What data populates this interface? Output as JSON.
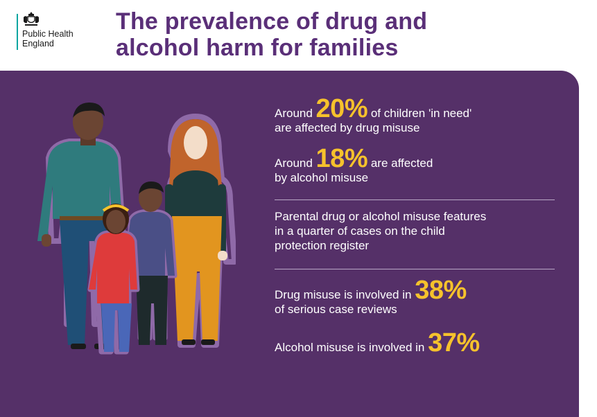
{
  "header": {
    "org_line1": "Public Health",
    "org_line2": "England",
    "title_line1": "The prevalence of drug and",
    "title_line2": "alcohol harm for families"
  },
  "stats": [
    {
      "pre": "Around ",
      "value": "20%",
      "post": " of children 'in need'",
      "line2": "are affected by drug misuse"
    },
    {
      "pre": "Around ",
      "value": "18%",
      "post": " are affected",
      "line2": "by alcohol misuse"
    },
    {
      "lines": [
        "Parental drug or alcohol misuse features",
        "in a quarter of cases on the child",
        "protection register"
      ]
    },
    {
      "pre": "Drug misuse is involved in ",
      "value": "38%",
      "line2": "of serious case reviews"
    },
    {
      "pre": "Alcohol misuse is involved in ",
      "value": "37%"
    }
  ],
  "colors": {
    "panel": "#553068",
    "title": "#5a2f78",
    "highlight": "#f6c22c",
    "logo_rule": "#00a5a0"
  },
  "icons": [
    "royal-crest-icon",
    "family-illustration"
  ]
}
